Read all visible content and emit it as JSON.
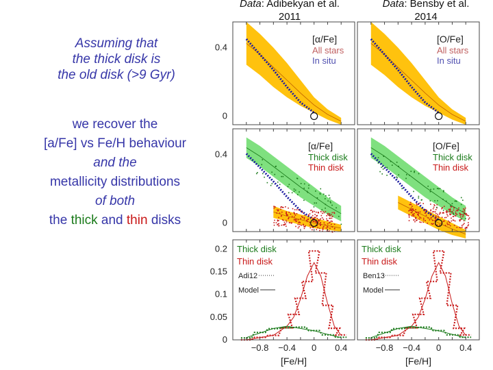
{
  "credits": {
    "left": {
      "prefix": "Data",
      "rest": ": Adibekyan et al.",
      "year": "2011"
    },
    "right": {
      "prefix": "Data",
      "rest": ": Bensby et al.",
      "year": "2014"
    }
  },
  "text": {
    "line1": "Assuming that",
    "line2": "the thick disk is",
    "line3": "the old disk (>9 Gyr)",
    "b1": "we recover the",
    "b2": "[a/Fe] vs Fe/H behaviour",
    "b3": "and the",
    "b4": "metallicity distributions",
    "b5": "of both",
    "b6a": "the ",
    "b6b": "thick",
    "b6c": " and ",
    "b6d": "thin",
    "b6e": " disks"
  },
  "colors": {
    "blurb": "#3636a8",
    "thick": "#1a7a1a",
    "thin": "#c81818",
    "band_old": "#ffc20e",
    "band_thick": "#7fe07f",
    "model_blue": "#1a1aa0"
  },
  "chart_data": [
    {
      "type": "area",
      "panel": "alpha-all-stars",
      "labels": [
        "[α/Fe]",
        "All stars",
        "In situ"
      ],
      "yticks": [
        0,
        0.4
      ],
      "xrange": [
        -1.2,
        0.6
      ],
      "ylim": [
        -0.05,
        0.55
      ],
      "series": [
        {
          "name": "All stars",
          "color": "#ffc20e",
          "x": [
            -1.0,
            -0.8,
            -0.6,
            -0.4,
            -0.2,
            0,
            0.2,
            0.4
          ],
          "upper": [
            0.55,
            0.48,
            0.4,
            0.31,
            0.21,
            0.11,
            0.04,
            -0.01
          ],
          "lower": [
            0.3,
            0.24,
            0.17,
            0.11,
            0.06,
            0.02,
            -0.02,
            -0.05
          ]
        },
        {
          "name": "In situ",
          "color": "#1a1aa0",
          "x": [
            -1.0,
            -0.8,
            -0.6,
            -0.4,
            -0.2,
            0
          ],
          "y": [
            0.45,
            0.36,
            0.27,
            0.17,
            0.08,
            0.02
          ]
        }
      ],
      "marker": {
        "x": 0.0,
        "y": 0.0
      }
    },
    {
      "type": "area",
      "panel": "o-all-stars",
      "labels": [
        "[O/Fe]",
        "All stars",
        "In situ"
      ],
      "xrange": [
        -1.2,
        0.6
      ],
      "ylim": [
        -0.05,
        0.55
      ],
      "series": [
        {
          "name": "All stars",
          "color": "#ffc20e",
          "x": [
            -1.0,
            -0.8,
            -0.6,
            -0.4,
            -0.2,
            0,
            0.2,
            0.4
          ],
          "upper": [
            0.55,
            0.48,
            0.4,
            0.31,
            0.21,
            0.11,
            0.04,
            -0.01
          ],
          "lower": [
            0.3,
            0.24,
            0.17,
            0.11,
            0.06,
            0.02,
            -0.02,
            -0.05
          ]
        },
        {
          "name": "In situ",
          "color": "#1a1aa0",
          "x": [
            -1.0,
            -0.8,
            -0.6,
            -0.4,
            -0.2,
            0
          ],
          "y": [
            0.45,
            0.36,
            0.27,
            0.17,
            0.08,
            0.02
          ]
        }
      ],
      "marker": {
        "x": 0.0,
        "y": 0.0
      }
    },
    {
      "type": "scatter",
      "panel": "alpha-thick-thin",
      "labels": [
        "[α/Fe]",
        "Thick disk",
        "Thin disk"
      ],
      "yticks": [
        0,
        0.4
      ],
      "xrange": [
        -1.2,
        0.6
      ],
      "ylim": [
        -0.05,
        0.55
      ],
      "bands": [
        {
          "name": "Thick disk",
          "color": "#7fe07f",
          "x": [
            -1.0,
            -0.8,
            -0.6,
            -0.4,
            -0.2,
            0,
            0.2,
            0.4
          ],
          "upper": [
            0.5,
            0.45,
            0.39,
            0.33,
            0.27,
            0.21,
            0.15,
            0.1
          ],
          "lower": [
            0.38,
            0.33,
            0.27,
            0.21,
            0.15,
            0.1,
            0.05,
            0.01
          ]
        },
        {
          "name": "Thin disk",
          "color": "#ffc20e",
          "x": [
            -0.6,
            -0.4,
            -0.2,
            0,
            0.2,
            0.4
          ],
          "upper": [
            0.1,
            0.07,
            0.05,
            0.03,
            0.01,
            -0.01
          ],
          "lower": [
            0.03,
            0.01,
            -0.01,
            -0.03,
            -0.04,
            -0.05
          ]
        }
      ],
      "points": {
        "color": "#c81818",
        "center": [
          -0.15,
          0.02
        ]
      }
    },
    {
      "type": "scatter",
      "panel": "o-thick-thin",
      "labels": [
        "[O/Fe]",
        "Thick disk",
        "Thin disk"
      ],
      "xrange": [
        -1.2,
        0.6
      ],
      "ylim": [
        -0.05,
        0.55
      ],
      "bands": [
        {
          "name": "Thick disk",
          "color": "#7fe07f",
          "x": [
            -1.0,
            -0.8,
            -0.6,
            -0.4,
            -0.2,
            0,
            0.2,
            0.4
          ],
          "upper": [
            0.5,
            0.45,
            0.39,
            0.33,
            0.27,
            0.21,
            0.15,
            0.1
          ],
          "lower": [
            0.38,
            0.33,
            0.27,
            0.21,
            0.15,
            0.1,
            0.05,
            0.01
          ]
        },
        {
          "name": "Thin disk",
          "color": "#ffc20e",
          "x": [
            -0.6,
            -0.4,
            -0.2,
            0,
            0.2,
            0.4
          ],
          "upper": [
            0.16,
            0.12,
            0.08,
            0.04,
            0.0,
            -0.04
          ],
          "lower": [
            0.08,
            0.04,
            0.0,
            -0.04,
            -0.07,
            -0.09
          ]
        }
      ],
      "points": {
        "color": "#c81818",
        "center": [
          0.0,
          0.05
        ]
      }
    },
    {
      "type": "line",
      "panel": "mdf-adibekyan",
      "labels": [
        "Thick disk",
        "Thin disk",
        "Adi12",
        "Model"
      ],
      "xlabel": "[Fe/H]",
      "xticks": [
        -0.8,
        -0.4,
        0,
        0.4
      ],
      "xticklabels": [
        "−0.8",
        "−0.4",
        "0",
        "0.4"
      ],
      "yticks": [
        0,
        0.05,
        0.1,
        0.15,
        0.2
      ],
      "yticklabels": [
        "0",
        "0.05",
        "0.1",
        "0.15",
        "0.2"
      ],
      "xrange": [
        -1.2,
        0.6
      ],
      "ylim": [
        0,
        0.22
      ],
      "series": [
        {
          "name": "Thin disk",
          "color": "#c81818",
          "x": [
            -1.0,
            -0.8,
            -0.6,
            -0.4,
            -0.3,
            -0.2,
            -0.1,
            0,
            0.1,
            0.2,
            0.3,
            0.4
          ],
          "y": [
            0.0,
            0.005,
            0.01,
            0.03,
            0.05,
            0.09,
            0.14,
            0.17,
            0.14,
            0.08,
            0.03,
            0.01
          ]
        },
        {
          "name": "Thick disk",
          "color": "#1a7a1a",
          "x": [
            -1.0,
            -0.8,
            -0.6,
            -0.4,
            -0.2,
            0,
            0.2,
            0.4
          ],
          "y": [
            0.005,
            0.015,
            0.025,
            0.03,
            0.025,
            0.02,
            0.012,
            0.005
          ]
        }
      ]
    },
    {
      "type": "line",
      "panel": "mdf-bensby",
      "labels": [
        "Thick disk",
        "Thin disk",
        "Ben13",
        "Model"
      ],
      "xlabel": "[Fe/H]",
      "xticks": [
        -0.8,
        -0.4,
        0,
        0.4
      ],
      "xticklabels": [
        "−0.8",
        "−0.4",
        "0",
        "0.4"
      ],
      "xrange": [
        -1.2,
        0.6
      ],
      "ylim": [
        0,
        0.22
      ],
      "series": [
        {
          "name": "Thin disk",
          "color": "#c81818",
          "x": [
            -1.0,
            -0.8,
            -0.6,
            -0.4,
            -0.3,
            -0.2,
            -0.1,
            0,
            0.1,
            0.2,
            0.3,
            0.4
          ],
          "y": [
            0.0,
            0.005,
            0.01,
            0.03,
            0.05,
            0.09,
            0.14,
            0.17,
            0.14,
            0.08,
            0.03,
            0.01
          ]
        },
        {
          "name": "Thick disk",
          "color": "#1a7a1a",
          "x": [
            -1.0,
            -0.8,
            -0.6,
            -0.4,
            -0.2,
            0,
            0.2,
            0.4
          ],
          "y": [
            0.005,
            0.015,
            0.025,
            0.03,
            0.025,
            0.02,
            0.012,
            0.005
          ]
        }
      ]
    }
  ]
}
